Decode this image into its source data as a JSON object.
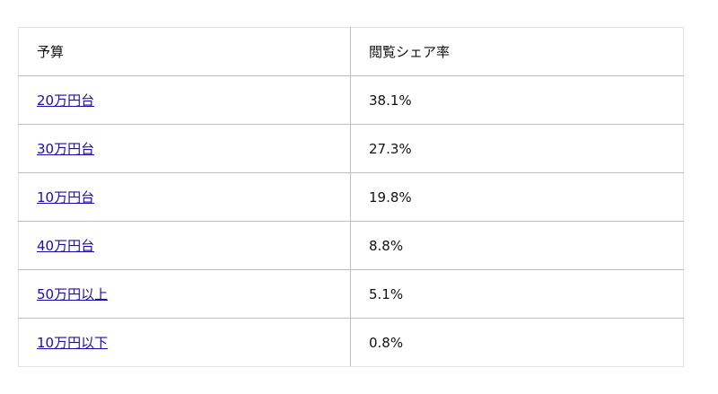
{
  "table": {
    "headers": [
      "予算",
      "閲覧シェア率"
    ],
    "rows": [
      {
        "budget": "20万円台",
        "share": "38.1%"
      },
      {
        "budget": "30万円台",
        "share": "27.3%"
      },
      {
        "budget": "10万円台",
        "share": "19.8%"
      },
      {
        "budget": "40万円台",
        "share": "8.8%"
      },
      {
        "budget": "50万円以上",
        "share": "5.1%"
      },
      {
        "budget": "10万円以下",
        "share": "0.8%"
      }
    ]
  },
  "colors": {
    "link": "#1a0dab"
  }
}
